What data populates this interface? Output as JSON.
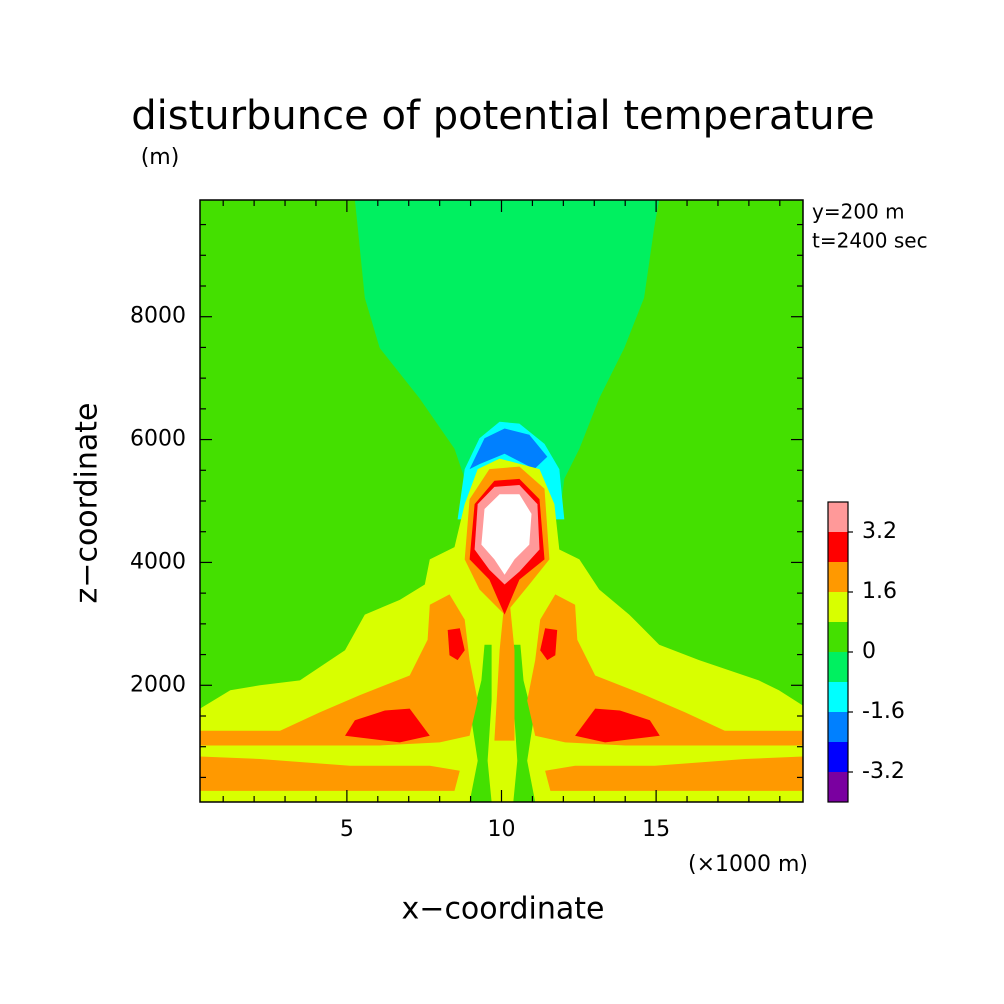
{
  "chart_data": {
    "type": "contour",
    "title": "disturbunce of potential temperature",
    "ylabel": "z−coordinate",
    "yunit": "(m)",
    "xlabel": "x−coordinate",
    "xunit": "(×1000 m)",
    "annotations": [
      "y=200 m",
      "t=2400 sec"
    ],
    "xlim": [
      0.25,
      19.75
    ],
    "ylim": [
      100,
      9900
    ],
    "xticks": [
      5,
      10,
      15
    ],
    "yticks": [
      2000,
      4000,
      6000,
      8000
    ],
    "xminorticks": [
      1,
      2,
      3,
      4,
      6,
      7,
      8,
      9,
      11,
      12,
      13,
      14,
      16,
      17,
      18,
      19
    ],
    "yminorticks": [
      500,
      1000,
      1500,
      2500,
      3000,
      3500,
      4500,
      5000,
      5500,
      6500,
      7000,
      7500,
      8500,
      9000,
      9500
    ],
    "levels": [
      -4,
      -3.2,
      -2.4,
      -1.6,
      -0.8,
      0,
      0.8,
      1.6,
      2.4,
      3.2,
      4
    ],
    "colors": [
      "#7a00a0",
      "#0000ff",
      "#0080ff",
      "#00ffff",
      "#00f060",
      "#44e000",
      "#d8ff00",
      "#ff9900",
      "#ff0000",
      "#ff9999"
    ],
    "above_color": "#ffffff",
    "cbar_ticks": [
      -3.2,
      -1.6,
      0,
      1.6,
      3.2
    ],
    "regions": [
      {
        "level": 0,
        "x": [
          0.25,
          19.75,
          19.75,
          0.25
        ],
        "z": [
          100,
          100,
          9900,
          9900
        ]
      },
      {
        "level": -0.8,
        "x": [
          5.26,
          5.35,
          5.58,
          6.06,
          7.35,
          8.48,
          8.81,
          8.97,
          11.87,
          12.03,
          12.52,
          13.16,
          13.97,
          14.61,
          14.94,
          15.1
        ],
        "z": [
          9900,
          9460,
          8310,
          7490,
          6670,
          5850,
          5360,
          4700,
          4700,
          5360,
          5850,
          6670,
          7490,
          8310,
          9460,
          9900
        ]
      },
      {
        "level": -1.6,
        "x": [
          8.58,
          8.81,
          9.29,
          9.94,
          10.58,
          11.39,
          11.87,
          12.03
        ],
        "z": [
          4700,
          5520,
          6020,
          6290,
          6260,
          5930,
          5520,
          4700
        ]
      },
      {
        "level": -2.4,
        "x": [
          8.97,
          9.45,
          10.1,
          10.9,
          11.48,
          11.06,
          10.1,
          9.29
        ],
        "z": [
          5520,
          6020,
          6180,
          6080,
          5720,
          5520,
          5770,
          5600
        ]
      },
      {
        "level": 0.8,
        "x": [
          0.25,
          0.25,
          1.23,
          2.19,
          3.48,
          4.94,
          5.58,
          6.71,
          7.52,
          7.68,
          8.48,
          8.81,
          9.23,
          9.94,
          11.23,
          11.71,
          11.87,
          12.52,
          13.16,
          14.13,
          15.1,
          16.39,
          18.32,
          18.97,
          19.75,
          19.75
        ],
        "z": [
          100,
          1620,
          1920,
          2000,
          2080,
          2570,
          3150,
          3390,
          3640,
          4050,
          4250,
          4950,
          5520,
          5690,
          5520,
          4950,
          4210,
          4050,
          3560,
          3150,
          2660,
          2410,
          2080,
          1920,
          1670,
          100
        ]
      },
      {
        "level": 0,
        "x": [
          8.97,
          9.23,
          9.03,
          9.35,
          9.45,
          9.68,
          9.68,
          9.55,
          9.68
        ],
        "z": [
          100,
          770,
          1430,
          2080,
          2660,
          2660,
          1750,
          770,
          100
        ]
      },
      {
        "level": 0,
        "x": [
          11.09,
          10.83,
          11.03,
          10.71,
          10.61,
          10.38,
          10.38,
          10.51,
          10.38
        ],
        "z": [
          100,
          770,
          1430,
          2080,
          2660,
          2660,
          1750,
          770,
          100
        ]
      },
      {
        "level": 1.6,
        "x": [
          0.25,
          0.25,
          2.19,
          5.1,
          7.68,
          8.65,
          8.48
        ],
        "z": [
          280,
          840,
          800,
          690,
          690,
          610,
          280
        ]
      },
      {
        "level": 1.6,
        "x": [
          19.75,
          19.75,
          17.87,
          14.96,
          12.38,
          11.41,
          11.58
        ],
        "z": [
          280,
          840,
          800,
          690,
          690,
          610,
          280
        ]
      },
      {
        "level": 1.6,
        "x": [
          0.25,
          0.25,
          2.84,
          4.13,
          5.42,
          7.03,
          7.61,
          7.68,
          8.32,
          8.81,
          8.97,
          9.23,
          8.97,
          8.0,
          6.06
        ],
        "z": [
          1020,
          1260,
          1260,
          1560,
          1840,
          2160,
          2740,
          3310,
          3480,
          3070,
          2410,
          1750,
          1180,
          1070,
          1020
        ]
      },
      {
        "level": 1.6,
        "x": [
          19.75,
          19.75,
          17.22,
          15.93,
          14.64,
          13.03,
          12.45,
          12.38,
          11.74,
          11.25,
          11.09,
          10.83,
          11.09,
          12.06,
          14.0
        ],
        "z": [
          1020,
          1260,
          1260,
          1560,
          1840,
          2160,
          2740,
          3310,
          3480,
          3070,
          2410,
          1750,
          1180,
          1070,
          1020
        ]
      },
      {
        "level": 1.6,
        "x": [
          9.77,
          9.94,
          10.1,
          10.26,
          10.42,
          10.42
        ],
        "z": [
          1100,
          2570,
          3390,
          3390,
          2570,
          1100
        ]
      },
      {
        "level": 1.6,
        "x": [
          8.81,
          8.97,
          9.61,
          10.58,
          11.39,
          11.55,
          10.9,
          10.1,
          9.29
        ],
        "z": [
          4050,
          5030,
          5520,
          5560,
          5200,
          4050,
          3640,
          3150,
          3560
        ]
      },
      {
        "level": 2.4,
        "x": [
          8.97,
          9.13,
          9.77,
          10.58,
          11.23,
          11.39,
          10.58,
          10.1,
          9.61
        ],
        "z": [
          4050,
          4950,
          5330,
          5360,
          5030,
          4050,
          3720,
          3150,
          3720
        ]
      },
      {
        "level": 2.4,
        "x": [
          8.26,
          8.65,
          8.81,
          8.58,
          8.32
        ],
        "z": [
          2900,
          2930,
          2570,
          2410,
          2490
        ]
      },
      {
        "level": 2.4,
        "x": [
          11.8,
          11.41,
          11.25,
          11.48,
          11.74
        ],
        "z": [
          2900,
          2930,
          2570,
          2410,
          2490
        ]
      },
      {
        "level": 2.4,
        "x": [
          4.94,
          5.26,
          6.23,
          7.03,
          7.68,
          6.71
        ],
        "z": [
          1180,
          1430,
          1590,
          1620,
          1180,
          1070
        ]
      },
      {
        "level": 2.4,
        "x": [
          15.12,
          14.8,
          13.83,
          13.03,
          12.38,
          13.35
        ],
        "z": [
          1180,
          1430,
          1590,
          1620,
          1180,
          1070
        ]
      },
      {
        "level": 3.2,
        "x": [
          9.13,
          9.23,
          9.77,
          10.58,
          11.16,
          11.23,
          10.58,
          10.1,
          9.61
        ],
        "z": [
          4210,
          4950,
          5230,
          5260,
          4950,
          4210,
          3850,
          3640,
          3880
        ]
      },
      {
        "level": 4,
        "x": [
          9.35,
          9.45,
          9.94,
          10.58,
          10.97,
          10.9,
          10.42,
          10.1,
          9.77
        ],
        "z": [
          4290,
          4870,
          5110,
          5110,
          4790,
          4290,
          4050,
          3800,
          4050
        ]
      }
    ]
  }
}
